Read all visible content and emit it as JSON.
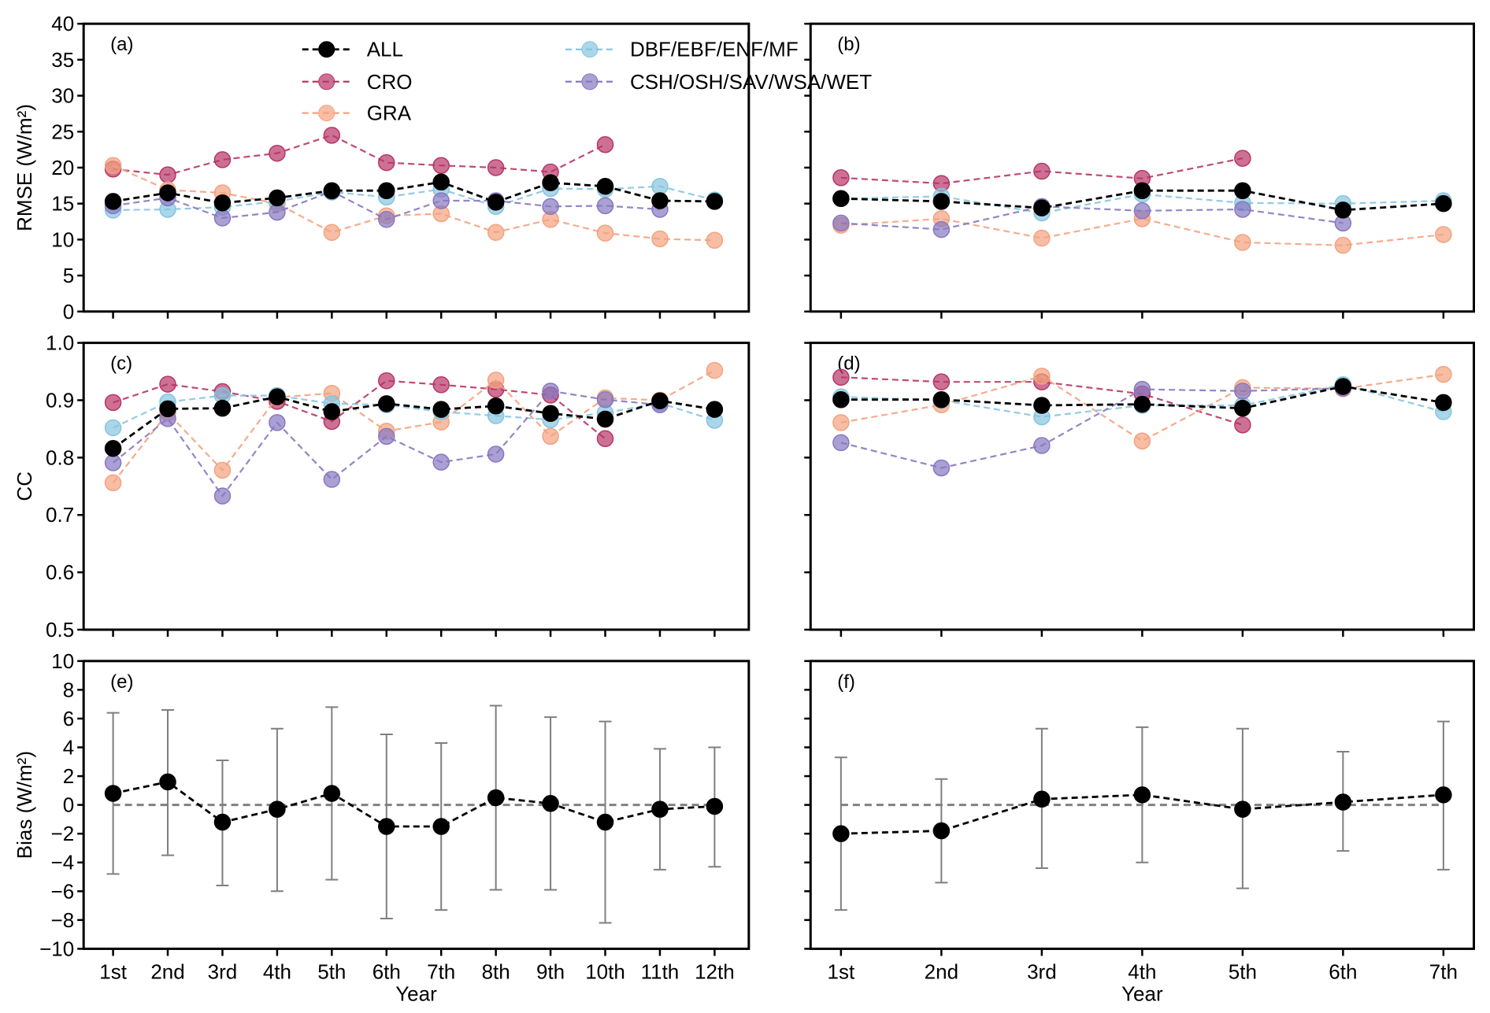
{
  "legend": {
    "placement": "top-center of panel (a)",
    "entries": [
      {
        "key": "ALL",
        "label": "ALL",
        "color": "#000000"
      },
      {
        "key": "CRO",
        "label": "CRO",
        "color": "#b83566"
      },
      {
        "key": "GRA",
        "label": "GRA",
        "color": "#f4a27f"
      },
      {
        "key": "DBF",
        "label": "DBF/EBF/ENF/MF",
        "color": "#86c5e0"
      },
      {
        "key": "CSH",
        "label": "CSH/OSH/SAV/WSA/WET",
        "color": "#8878c0"
      }
    ]
  },
  "x_label": "Year",
  "chart_data": [
    {
      "id": "a",
      "panel_label": "(a)",
      "type": "line",
      "ylabel": "RMSE (W/m²)",
      "ylim": [
        0,
        40
      ],
      "yticks": [
        "0",
        "5",
        "10",
        "15",
        "20",
        "25",
        "30",
        "35",
        "40"
      ],
      "categories": [
        "1st",
        "2nd",
        "3rd",
        "4th",
        "5th",
        "6th",
        "7th",
        "8th",
        "9th",
        "10th",
        "11th",
        "12th"
      ],
      "series": [
        {
          "name": "ALL",
          "values": [
            15.3,
            16.5,
            15.1,
            15.8,
            16.8,
            16.8,
            18.0,
            15.2,
            17.9,
            17.4,
            15.4,
            15.3
          ]
        },
        {
          "name": "CRO",
          "values": [
            19.8,
            19.0,
            21.1,
            22.0,
            24.5,
            20.7,
            20.3,
            20.0,
            19.4,
            23.2,
            null,
            null
          ]
        },
        {
          "name": "GRA",
          "values": [
            20.3,
            16.9,
            16.5,
            15.0,
            11.0,
            13.3,
            13.6,
            11.0,
            12.8,
            10.9,
            10.1,
            9.9
          ]
        },
        {
          "name": "DBF/EBF/ENF/MF",
          "values": [
            14.1,
            14.2,
            14.5,
            15.3,
            16.6,
            15.9,
            17.0,
            14.6,
            17.1,
            17.0,
            17.4,
            15.5
          ]
        },
        {
          "name": "CSH/OSH/SAV/WSA/WET",
          "values": [
            14.7,
            15.8,
            13.0,
            13.8,
            16.7,
            12.8,
            15.4,
            15.4,
            14.6,
            14.7,
            14.2,
            null
          ]
        }
      ]
    },
    {
      "id": "b",
      "panel_label": "(b)",
      "type": "line",
      "ylabel": "",
      "ylim": [
        0,
        40
      ],
      "yticks": [
        "",
        "",
        "",
        "",
        "",
        "",
        "",
        "",
        ""
      ],
      "categories": [
        "1st",
        "2nd",
        "3rd",
        "4th",
        "5th",
        "6th",
        "7th"
      ],
      "series": [
        {
          "name": "ALL",
          "values": [
            15.7,
            15.3,
            14.4,
            16.8,
            16.8,
            14.1,
            15.0
          ]
        },
        {
          "name": "CRO",
          "values": [
            18.6,
            17.8,
            19.5,
            18.5,
            21.3,
            null,
            null
          ]
        },
        {
          "name": "GRA",
          "values": [
            12.0,
            12.9,
            10.2,
            12.9,
            9.6,
            9.2,
            10.7
          ]
        },
        {
          "name": "DBF/EBF/ENF/MF",
          "values": [
            15.7,
            16.0,
            13.7,
            16.3,
            15.1,
            15.0,
            15.4
          ]
        },
        {
          "name": "CSH/OSH/SAV/WSA/WET",
          "values": [
            12.3,
            11.4,
            14.6,
            14.0,
            14.2,
            12.3,
            null
          ]
        }
      ]
    },
    {
      "id": "c",
      "panel_label": "(c)",
      "type": "line",
      "ylabel": "CC",
      "ylim": [
        0.5,
        1.0
      ],
      "yticks": [
        "0.5",
        "0.6",
        "0.7",
        "0.8",
        "0.9",
        "1.0"
      ],
      "categories": [
        "1st",
        "2nd",
        "3rd",
        "4th",
        "5th",
        "6th",
        "7th",
        "8th",
        "9th",
        "10th",
        "11th",
        "12th"
      ],
      "series": [
        {
          "name": "ALL",
          "values": [
            0.816,
            0.885,
            0.886,
            0.906,
            0.88,
            0.894,
            0.884,
            0.89,
            0.877,
            0.867,
            0.899,
            0.884
          ]
        },
        {
          "name": "CRO",
          "values": [
            0.896,
            0.928,
            0.915,
            0.898,
            0.863,
            0.934,
            0.927,
            0.919,
            0.909,
            0.833,
            null,
            null
          ]
        },
        {
          "name": "GRA",
          "values": [
            0.756,
            0.878,
            0.778,
            0.905,
            0.912,
            0.846,
            0.862,
            0.935,
            0.837,
            0.904,
            0.9,
            0.952
          ]
        },
        {
          "name": "DBF/EBF/ENF/MF",
          "values": [
            0.852,
            0.897,
            0.908,
            0.908,
            0.894,
            0.892,
            0.88,
            0.873,
            0.866,
            0.878,
            0.895,
            0.865
          ]
        },
        {
          "name": "CSH/OSH/SAV/WSA/WET",
          "values": [
            0.791,
            0.868,
            0.733,
            0.861,
            0.762,
            0.837,
            0.792,
            0.806,
            0.916,
            0.901,
            0.892,
            null
          ]
        }
      ]
    },
    {
      "id": "d",
      "panel_label": "(d)",
      "type": "line",
      "ylabel": "",
      "ylim": [
        0.5,
        1.0
      ],
      "yticks": [
        "",
        "",
        "",
        "",
        "",
        ""
      ],
      "categories": [
        "1st",
        "2nd",
        "3rd",
        "4th",
        "5th",
        "6th",
        "7th"
      ],
      "series": [
        {
          "name": "ALL",
          "values": [
            0.901,
            0.901,
            0.891,
            0.893,
            0.886,
            0.924,
            0.896
          ]
        },
        {
          "name": "CRO",
          "values": [
            0.94,
            0.932,
            0.932,
            0.911,
            0.857,
            null,
            null
          ]
        },
        {
          "name": "GRA",
          "values": [
            0.861,
            0.892,
            0.942,
            0.829,
            0.922,
            0.92,
            0.945
          ]
        },
        {
          "name": "DBF/EBF/ENF/MF",
          "values": [
            0.906,
            0.9,
            0.871,
            0.891,
            0.891,
            0.927,
            0.88
          ]
        },
        {
          "name": "CSH/OSH/SAV/WSA/WET",
          "values": [
            0.826,
            0.782,
            0.821,
            0.919,
            0.916,
            0.921,
            null
          ]
        }
      ]
    },
    {
      "id": "e",
      "panel_label": "(e)",
      "type": "errorbar",
      "ylabel": "Bias (W/m²)",
      "ylim": [
        -10,
        10
      ],
      "yticks": [
        "−10",
        "−8",
        "−6",
        "−4",
        "−2",
        "0",
        "2",
        "4",
        "6",
        "8",
        "10"
      ],
      "reference_line": 0,
      "categories": [
        "1st",
        "2nd",
        "3rd",
        "4th",
        "5th",
        "6th",
        "7th",
        "8th",
        "9th",
        "10th",
        "11th",
        "12th"
      ],
      "series": [
        {
          "name": "ALL",
          "values": [
            0.8,
            1.6,
            -1.2,
            -0.3,
            0.8,
            -1.5,
            -1.5,
            0.5,
            0.1,
            -1.2,
            -0.3,
            -0.1
          ],
          "upper": [
            6.4,
            6.6,
            3.1,
            5.3,
            6.8,
            4.9,
            4.3,
            6.9,
            6.1,
            5.8,
            3.9,
            4.0
          ],
          "lower": [
            -4.8,
            -3.5,
            -5.6,
            -6.0,
            -5.2,
            -7.9,
            -7.3,
            -5.9,
            -5.9,
            -8.2,
            -4.5,
            -4.3
          ]
        }
      ]
    },
    {
      "id": "f",
      "panel_label": "(f)",
      "type": "errorbar",
      "ylabel": "",
      "ylim": [
        -10,
        10
      ],
      "yticks": [
        "",
        "",
        "",
        "",
        "",
        "",
        "",
        "",
        "",
        "",
        ""
      ],
      "reference_line": 0,
      "categories": [
        "1st",
        "2nd",
        "3rd",
        "4th",
        "5th",
        "6th",
        "7th"
      ],
      "series": [
        {
          "name": "ALL",
          "values": [
            -2.0,
            -1.8,
            0.4,
            0.7,
            -0.3,
            0.2,
            0.7
          ],
          "upper": [
            3.3,
            1.8,
            5.3,
            5.4,
            5.3,
            3.7,
            5.8
          ],
          "lower": [
            -7.3,
            -5.4,
            -4.4,
            -4.0,
            -5.8,
            -3.2,
            -4.5
          ]
        }
      ]
    }
  ]
}
